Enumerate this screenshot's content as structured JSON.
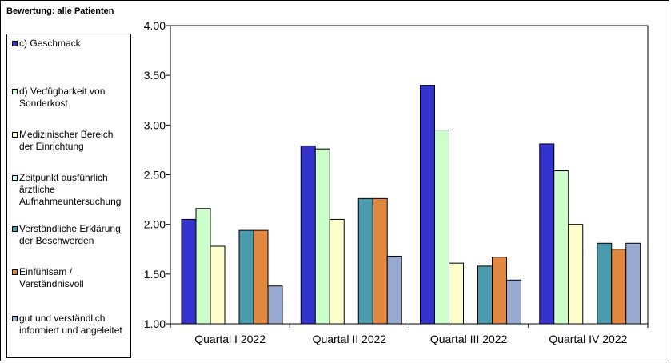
{
  "chart_data": {
    "type": "bar",
    "title": "Bewertung: alle Patienten",
    "categories": [
      "Quartal I 2022",
      "Quartal II 2022",
      "Quartal III 2022",
      "Quartal IV 2022"
    ],
    "series": [
      {
        "name": "c) Geschmack",
        "color": "#3333cc",
        "values": [
          2.05,
          2.79,
          3.4,
          2.81
        ]
      },
      {
        "name": "d) Verfügbarkeit von Sonderkost",
        "color": "#ccffcc",
        "values": [
          2.16,
          2.76,
          2.95,
          2.54
        ]
      },
      {
        "name": "Medizinischer Bereich der Einrichtung",
        "color": "#ffffcc",
        "values": [
          1.78,
          2.05,
          1.61,
          2.0
        ]
      },
      {
        "name": "Zeitpunkt ausführlich ärztliche Aufnahmeuntersuchung",
        "color": "#ccffff",
        "values": [
          null,
          null,
          null,
          null
        ]
      },
      {
        "name": "Verständliche Erklärung der Beschwerden",
        "color": "#4a9aae",
        "values": [
          1.94,
          2.26,
          1.58,
          1.81
        ]
      },
      {
        "name": "Einfühlsam / Verständnisvoll",
        "color": "#e08840",
        "values": [
          1.94,
          2.26,
          1.67,
          1.75
        ]
      },
      {
        "name": "gut und verständlich informiert und angeleitet",
        "color": "#99aad2",
        "values": [
          1.38,
          1.68,
          1.44,
          1.81
        ]
      }
    ],
    "ylim": [
      1.0,
      4.0
    ],
    "yticks": [
      "1.00",
      "1.50",
      "2.00",
      "2.50",
      "3.00",
      "3.50",
      "4.00"
    ],
    "xlabel": "",
    "ylabel": "",
    "grid": false,
    "legend": "left"
  }
}
